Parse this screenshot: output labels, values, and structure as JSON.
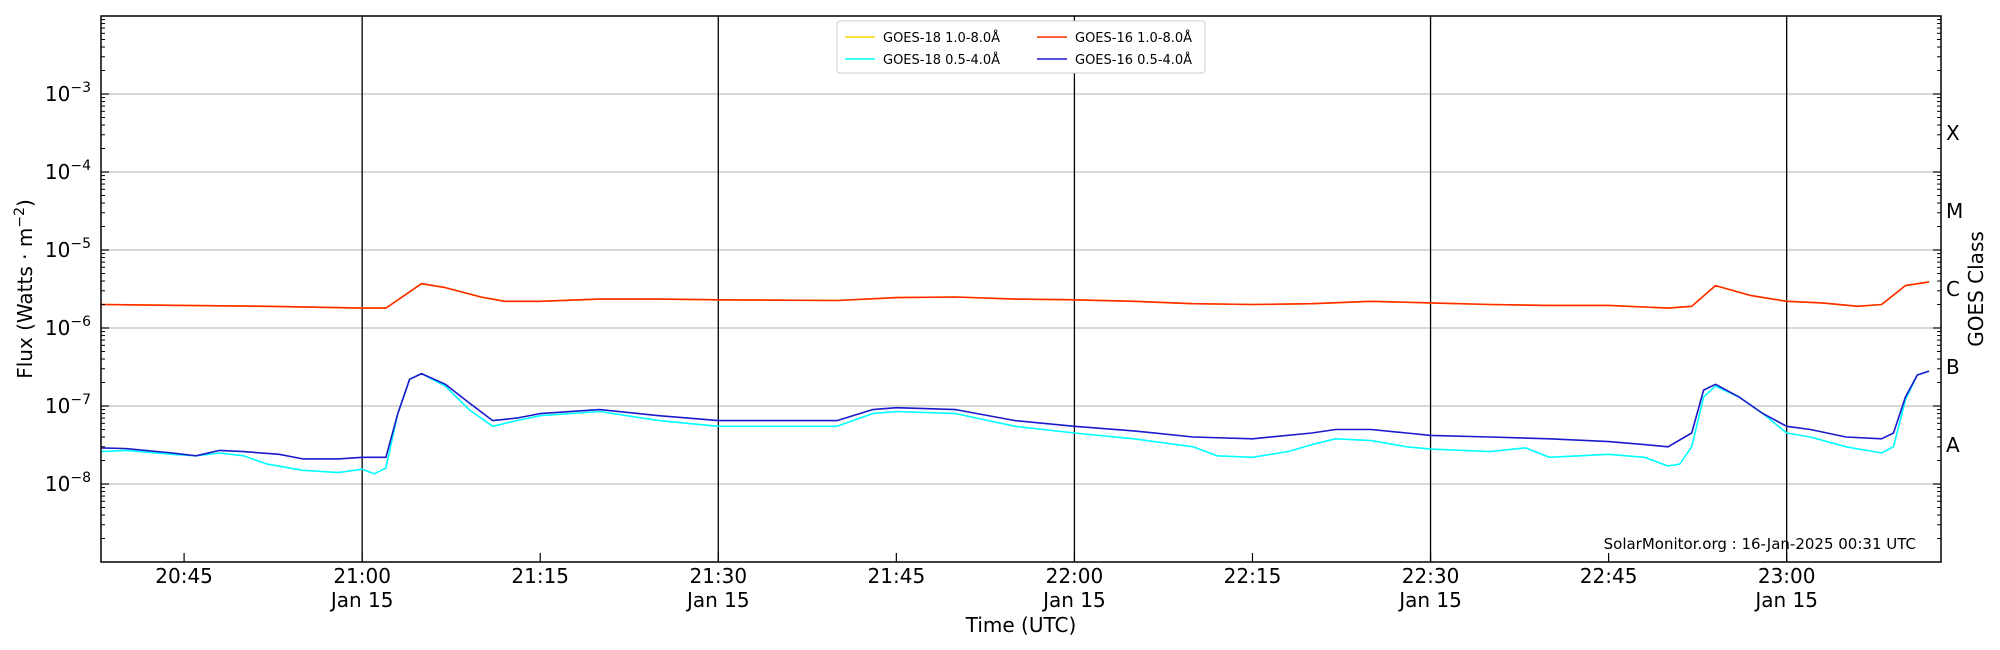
{
  "chart_data": {
    "type": "line",
    "xlabel": "Time (UTC)",
    "ylabel_main": "Flux (Watts · m",
    "ylabel_exp": "−2",
    "ylabel_close": ")",
    "ylabel_right": "GOES Class",
    "credit": "SolarMonitor.org : 16-Jan-2025 00:31 UTC",
    "xlim": [
      "20:38",
      "23:13"
    ],
    "ylim": [
      1e-09,
      0.01
    ],
    "yscale": "log",
    "grid": "horizontal",
    "legend_placement": "top-center",
    "y_ticks": [
      {
        "value": 0.001,
        "base": "10",
        "exp": "−3"
      },
      {
        "value": 0.0001,
        "base": "10",
        "exp": "−4"
      },
      {
        "value": 1e-05,
        "base": "10",
        "exp": "−5"
      },
      {
        "value": 1e-06,
        "base": "10",
        "exp": "−6"
      },
      {
        "value": 1e-07,
        "base": "10",
        "exp": "−7"
      },
      {
        "value": 1e-08,
        "base": "10",
        "exp": "−8"
      }
    ],
    "x_ticks": [
      {
        "time": "20:45",
        "label": "20:45",
        "sub": ""
      },
      {
        "time": "21:00",
        "label": "21:00",
        "sub": "Jan 15"
      },
      {
        "time": "21:15",
        "label": "21:15",
        "sub": ""
      },
      {
        "time": "21:30",
        "label": "21:30",
        "sub": "Jan 15"
      },
      {
        "time": "21:45",
        "label": "21:45",
        "sub": ""
      },
      {
        "time": "22:00",
        "label": "22:00",
        "sub": "Jan 15"
      },
      {
        "time": "22:15",
        "label": "22:15",
        "sub": ""
      },
      {
        "time": "22:30",
        "label": "22:30",
        "sub": "Jan 15"
      },
      {
        "time": "22:45",
        "label": "22:45",
        "sub": ""
      },
      {
        "time": "23:00",
        "label": "23:00",
        "sub": "Jan 15"
      }
    ],
    "vlines": [
      "21:00",
      "21:30",
      "22:00",
      "22:30",
      "23:00"
    ],
    "goes_classes": [
      {
        "label": "X",
        "value": 0.000316
      },
      {
        "label": "M",
        "value": 3.16e-05
      },
      {
        "label": "C",
        "value": 3.16e-06
      },
      {
        "label": "B",
        "value": 3.16e-07
      },
      {
        "label": "A",
        "value": 3.16e-08
      }
    ],
    "series": [
      {
        "name": "GOES-18 1.0-8.0Å",
        "color": "#ffd700",
        "points": [
          [
            "20:38",
            2e-06
          ],
          [
            "20:45",
            1.95e-06
          ],
          [
            "20:52",
            1.9e-06
          ],
          [
            "21:00",
            1.8e-06
          ],
          [
            "21:02",
            1.8e-06
          ],
          [
            "21:05",
            3.7e-06
          ],
          [
            "21:07",
            3.3e-06
          ],
          [
            "21:10",
            2.5e-06
          ],
          [
            "21:12",
            2.2e-06
          ],
          [
            "21:15",
            2.2e-06
          ],
          [
            "21:20",
            2.35e-06
          ],
          [
            "21:25",
            2.35e-06
          ],
          [
            "21:30",
            2.3e-06
          ],
          [
            "21:40",
            2.25e-06
          ],
          [
            "21:45",
            2.45e-06
          ],
          [
            "21:50",
            2.5e-06
          ],
          [
            "21:55",
            2.35e-06
          ],
          [
            "22:00",
            2.3e-06
          ],
          [
            "22:05",
            2.2e-06
          ],
          [
            "22:10",
            2.05e-06
          ],
          [
            "22:15",
            2e-06
          ],
          [
            "22:20",
            2.05e-06
          ],
          [
            "22:25",
            2.2e-06
          ],
          [
            "22:30",
            2.1e-06
          ],
          [
            "22:35",
            2e-06
          ],
          [
            "22:40",
            1.95e-06
          ],
          [
            "22:45",
            1.95e-06
          ],
          [
            "22:50",
            1.8e-06
          ],
          [
            "22:52",
            1.9e-06
          ],
          [
            "22:54",
            3.5e-06
          ],
          [
            "22:57",
            2.6e-06
          ],
          [
            "23:00",
            2.2e-06
          ],
          [
            "23:03",
            2.1e-06
          ],
          [
            "23:06",
            1.9e-06
          ],
          [
            "23:08",
            2e-06
          ],
          [
            "23:10",
            3.5e-06
          ],
          [
            "23:12",
            3.9e-06
          ]
        ]
      },
      {
        "name": "GOES-16 1.0-8.0Å",
        "color": "#ff2a00",
        "points": [
          [
            "20:38",
            2e-06
          ],
          [
            "20:45",
            1.95e-06
          ],
          [
            "20:52",
            1.9e-06
          ],
          [
            "21:00",
            1.8e-06
          ],
          [
            "21:02",
            1.8e-06
          ],
          [
            "21:05",
            3.7e-06
          ],
          [
            "21:07",
            3.3e-06
          ],
          [
            "21:10",
            2.5e-06
          ],
          [
            "21:12",
            2.2e-06
          ],
          [
            "21:15",
            2.2e-06
          ],
          [
            "21:20",
            2.35e-06
          ],
          [
            "21:25",
            2.35e-06
          ],
          [
            "21:30",
            2.3e-06
          ],
          [
            "21:40",
            2.25e-06
          ],
          [
            "21:45",
            2.45e-06
          ],
          [
            "21:50",
            2.5e-06
          ],
          [
            "21:55",
            2.35e-06
          ],
          [
            "22:00",
            2.3e-06
          ],
          [
            "22:05",
            2.2e-06
          ],
          [
            "22:10",
            2.05e-06
          ],
          [
            "22:15",
            2e-06
          ],
          [
            "22:20",
            2.05e-06
          ],
          [
            "22:25",
            2.2e-06
          ],
          [
            "22:30",
            2.1e-06
          ],
          [
            "22:35",
            2e-06
          ],
          [
            "22:40",
            1.95e-06
          ],
          [
            "22:45",
            1.95e-06
          ],
          [
            "22:50",
            1.8e-06
          ],
          [
            "22:52",
            1.9e-06
          ],
          [
            "22:54",
            3.5e-06
          ],
          [
            "22:57",
            2.6e-06
          ],
          [
            "23:00",
            2.2e-06
          ],
          [
            "23:03",
            2.1e-06
          ],
          [
            "23:06",
            1.9e-06
          ],
          [
            "23:08",
            2e-06
          ],
          [
            "23:10",
            3.5e-06
          ],
          [
            "23:12",
            3.9e-06
          ]
        ]
      },
      {
        "name": "GOES-18 0.5-4.0Å",
        "color": "#00ffff",
        "points": [
          [
            "20:38",
            2.6e-08
          ],
          [
            "20:40",
            2.7e-08
          ],
          [
            "20:44",
            2.4e-08
          ],
          [
            "20:46",
            2.3e-08
          ],
          [
            "20:48",
            2.5e-08
          ],
          [
            "20:50",
            2.3e-08
          ],
          [
            "20:52",
            1.8e-08
          ],
          [
            "20:55",
            1.5e-08
          ],
          [
            "20:58",
            1.4e-08
          ],
          [
            "21:00",
            1.55e-08
          ],
          [
            "21:01",
            1.35e-08
          ],
          [
            "21:02",
            1.6e-08
          ],
          [
            "21:03",
            8e-08
          ],
          [
            "21:04",
            2.2e-07
          ],
          [
            "21:05",
            2.6e-07
          ],
          [
            "21:07",
            1.8e-07
          ],
          [
            "21:09",
            9e-08
          ],
          [
            "21:11",
            5.5e-08
          ],
          [
            "21:13",
            6.5e-08
          ],
          [
            "21:15",
            7.5e-08
          ],
          [
            "21:20",
            8.5e-08
          ],
          [
            "21:25",
            6.5e-08
          ],
          [
            "21:30",
            5.5e-08
          ],
          [
            "21:35",
            5.5e-08
          ],
          [
            "21:40",
            5.5e-08
          ],
          [
            "21:43",
            8e-08
          ],
          [
            "21:45",
            8.5e-08
          ],
          [
            "21:50",
            8e-08
          ],
          [
            "21:55",
            5.5e-08
          ],
          [
            "22:00",
            4.5e-08
          ],
          [
            "22:05",
            3.8e-08
          ],
          [
            "22:10",
            3e-08
          ],
          [
            "22:12",
            2.3e-08
          ],
          [
            "22:15",
            2.2e-08
          ],
          [
            "22:18",
            2.6e-08
          ],
          [
            "22:20",
            3.2e-08
          ],
          [
            "22:22",
            3.8e-08
          ],
          [
            "22:25",
            3.6e-08
          ],
          [
            "22:28",
            3e-08
          ],
          [
            "22:30",
            2.8e-08
          ],
          [
            "22:35",
            2.6e-08
          ],
          [
            "22:38",
            2.9e-08
          ],
          [
            "22:40",
            2.2e-08
          ],
          [
            "22:45",
            2.4e-08
          ],
          [
            "22:48",
            2.2e-08
          ],
          [
            "22:50",
            1.7e-08
          ],
          [
            "22:51",
            1.8e-08
          ],
          [
            "22:52",
            3e-08
          ],
          [
            "22:53",
            1.3e-07
          ],
          [
            "22:54",
            1.8e-07
          ],
          [
            "22:56",
            1.3e-07
          ],
          [
            "22:58",
            8e-08
          ],
          [
            "23:00",
            4.5e-08
          ],
          [
            "23:02",
            4e-08
          ],
          [
            "23:05",
            3e-08
          ],
          [
            "23:08",
            2.5e-08
          ],
          [
            "23:09",
            3e-08
          ],
          [
            "23:10",
            1.2e-07
          ],
          [
            "23:11",
            2.5e-07
          ],
          [
            "23:12",
            2.8e-07
          ]
        ]
      },
      {
        "name": "GOES-16 0.5-4.0Å",
        "color": "#1a1acc",
        "points": [
          [
            "20:38",
            2.9e-08
          ],
          [
            "20:40",
            2.85e-08
          ],
          [
            "20:44",
            2.5e-08
          ],
          [
            "20:46",
            2.3e-08
          ],
          [
            "20:48",
            2.7e-08
          ],
          [
            "20:50",
            2.6e-08
          ],
          [
            "20:53",
            2.4e-08
          ],
          [
            "20:55",
            2.1e-08
          ],
          [
            "20:58",
            2.1e-08
          ],
          [
            "21:00",
            2.2e-08
          ],
          [
            "21:02",
            2.2e-08
          ],
          [
            "21:03",
            8e-08
          ],
          [
            "21:04",
            2.2e-07
          ],
          [
            "21:05",
            2.6e-07
          ],
          [
            "21:07",
            1.9e-07
          ],
          [
            "21:09",
            1.1e-07
          ],
          [
            "21:11",
            6.5e-08
          ],
          [
            "21:13",
            7e-08
          ],
          [
            "21:15",
            8e-08
          ],
          [
            "21:20",
            9e-08
          ],
          [
            "21:25",
            7.5e-08
          ],
          [
            "21:30",
            6.5e-08
          ],
          [
            "21:35",
            6.5e-08
          ],
          [
            "21:40",
            6.5e-08
          ],
          [
            "21:43",
            9e-08
          ],
          [
            "21:45",
            9.5e-08
          ],
          [
            "21:50",
            9e-08
          ],
          [
            "21:55",
            6.5e-08
          ],
          [
            "22:00",
            5.5e-08
          ],
          [
            "22:05",
            4.8e-08
          ],
          [
            "22:10",
            4e-08
          ],
          [
            "22:15",
            3.8e-08
          ],
          [
            "22:20",
            4.5e-08
          ],
          [
            "22:22",
            5e-08
          ],
          [
            "22:25",
            5e-08
          ],
          [
            "22:28",
            4.5e-08
          ],
          [
            "22:30",
            4.2e-08
          ],
          [
            "22:35",
            4e-08
          ],
          [
            "22:40",
            3.8e-08
          ],
          [
            "22:45",
            3.5e-08
          ],
          [
            "22:48",
            3.2e-08
          ],
          [
            "22:50",
            3e-08
          ],
          [
            "22:52",
            4.5e-08
          ],
          [
            "22:53",
            1.6e-07
          ],
          [
            "22:54",
            1.9e-07
          ],
          [
            "22:56",
            1.3e-07
          ],
          [
            "22:58",
            8e-08
          ],
          [
            "23:00",
            5.5e-08
          ],
          [
            "23:02",
            5e-08
          ],
          [
            "23:05",
            4e-08
          ],
          [
            "23:08",
            3.8e-08
          ],
          [
            "23:09",
            4.5e-08
          ],
          [
            "23:10",
            1.3e-07
          ],
          [
            "23:11",
            2.5e-07
          ],
          [
            "23:12",
            2.8e-07
          ]
        ]
      }
    ],
    "legend_order": [
      0,
      2,
      1,
      3
    ]
  }
}
